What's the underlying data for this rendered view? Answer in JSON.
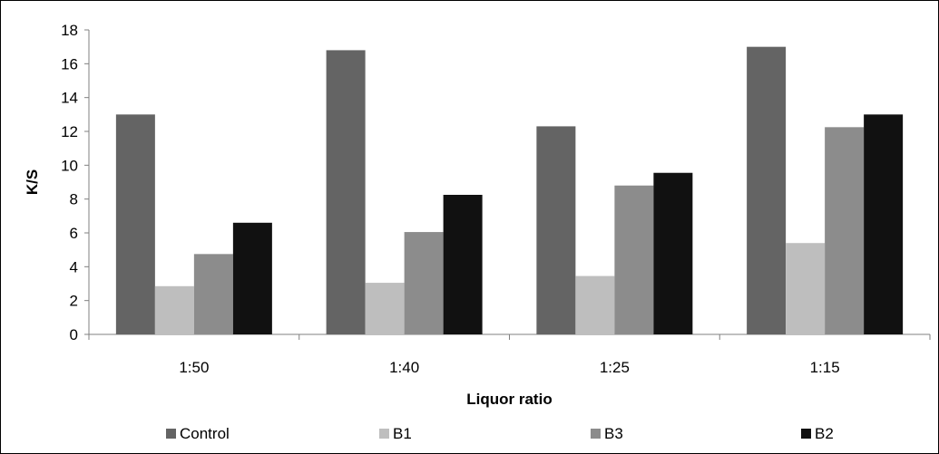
{
  "chart_data": {
    "type": "bar",
    "xlabel": "Liquor ratio",
    "ylabel": "K/S",
    "ylim": [
      0,
      18
    ],
    "yticks": [
      0,
      2,
      4,
      6,
      8,
      10,
      12,
      14,
      16,
      18
    ],
    "grid": false,
    "legend": "bottom",
    "categories": [
      "1:50",
      "1:40",
      "1:25",
      "1:15"
    ],
    "series": [
      {
        "name": "Control",
        "color": "#646464",
        "values": [
          13.0,
          16.8,
          12.3,
          17.0
        ]
      },
      {
        "name": "B1",
        "color": "#bebebe",
        "values": [
          2.85,
          3.05,
          3.45,
          5.4
        ]
      },
      {
        "name": "B3",
        "color": "#8c8c8c",
        "values": [
          4.75,
          6.05,
          8.8,
          12.25
        ]
      },
      {
        "name": "B2",
        "color": "#111111",
        "values": [
          6.6,
          8.25,
          9.55,
          13.0
        ]
      }
    ]
  }
}
